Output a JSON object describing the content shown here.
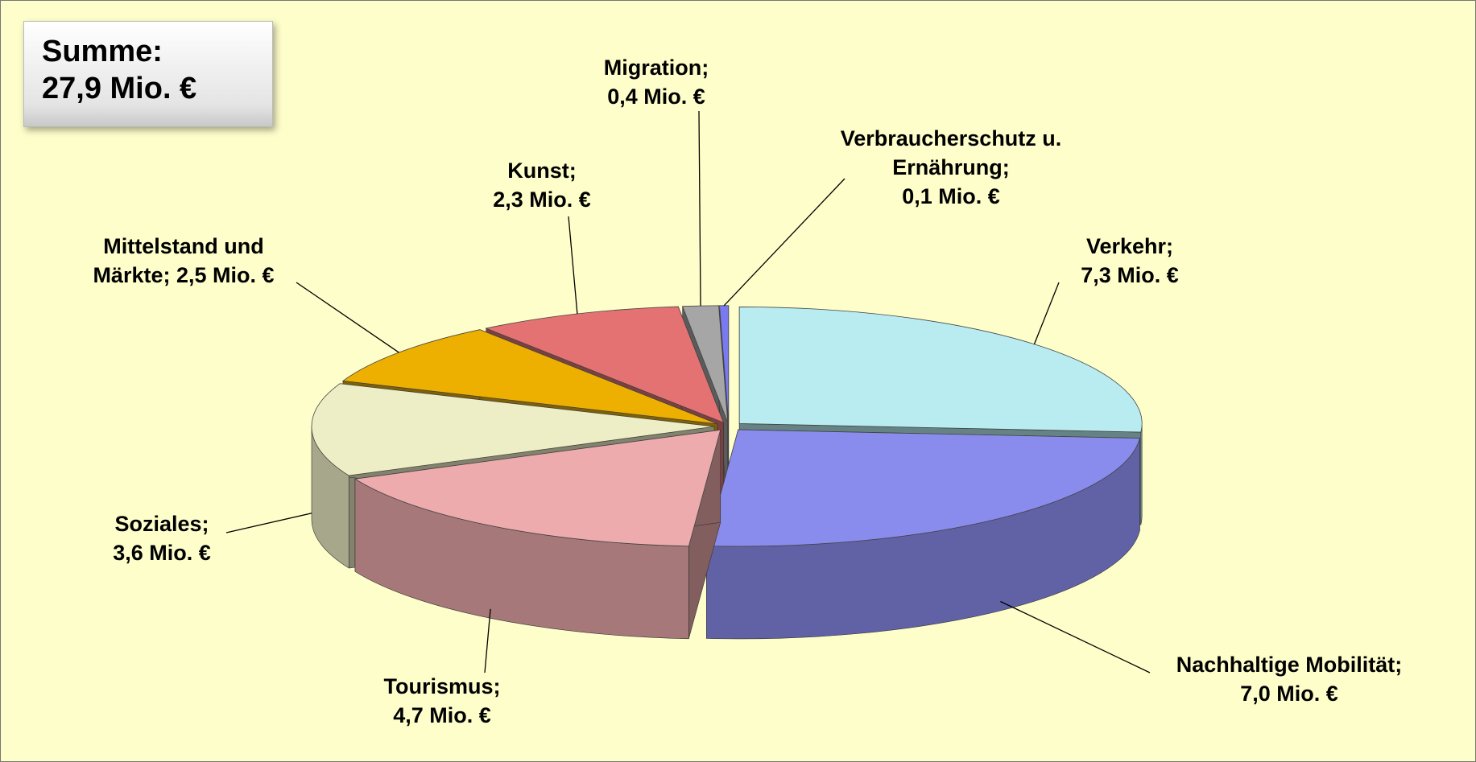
{
  "chart_data": {
    "type": "pie3d",
    "categories": [
      "Verkehr",
      "Nachhaltige Mobilität",
      "Tourismus",
      "Soziales",
      "Mittelstand und Märkte",
      "Kunst",
      "Migration",
      "Verbraucherschutz u. Ernährung"
    ],
    "values": [
      7.3,
      7.0,
      4.7,
      3.6,
      2.5,
      2.3,
      0.4,
      0.1
    ],
    "value_labels": [
      "7,3 Mio. €",
      "7,0 Mio. €",
      "4,7 Mio. €",
      "3,6 Mio. €",
      "2,5 Mio. €",
      "2,3 Mio. €",
      "0,4 Mio. €",
      "0,1 Mio. €"
    ],
    "label_separator": ";",
    "colors": [
      "#b8ecf0",
      "#8a8ced",
      "#eeabad",
      "#eeeec6",
      "#edb000",
      "#e57272",
      "#a6a6a6",
      "#7a7af0"
    ],
    "annotation": {
      "title": "Summe:",
      "text": "27,9 Mio. €"
    }
  }
}
